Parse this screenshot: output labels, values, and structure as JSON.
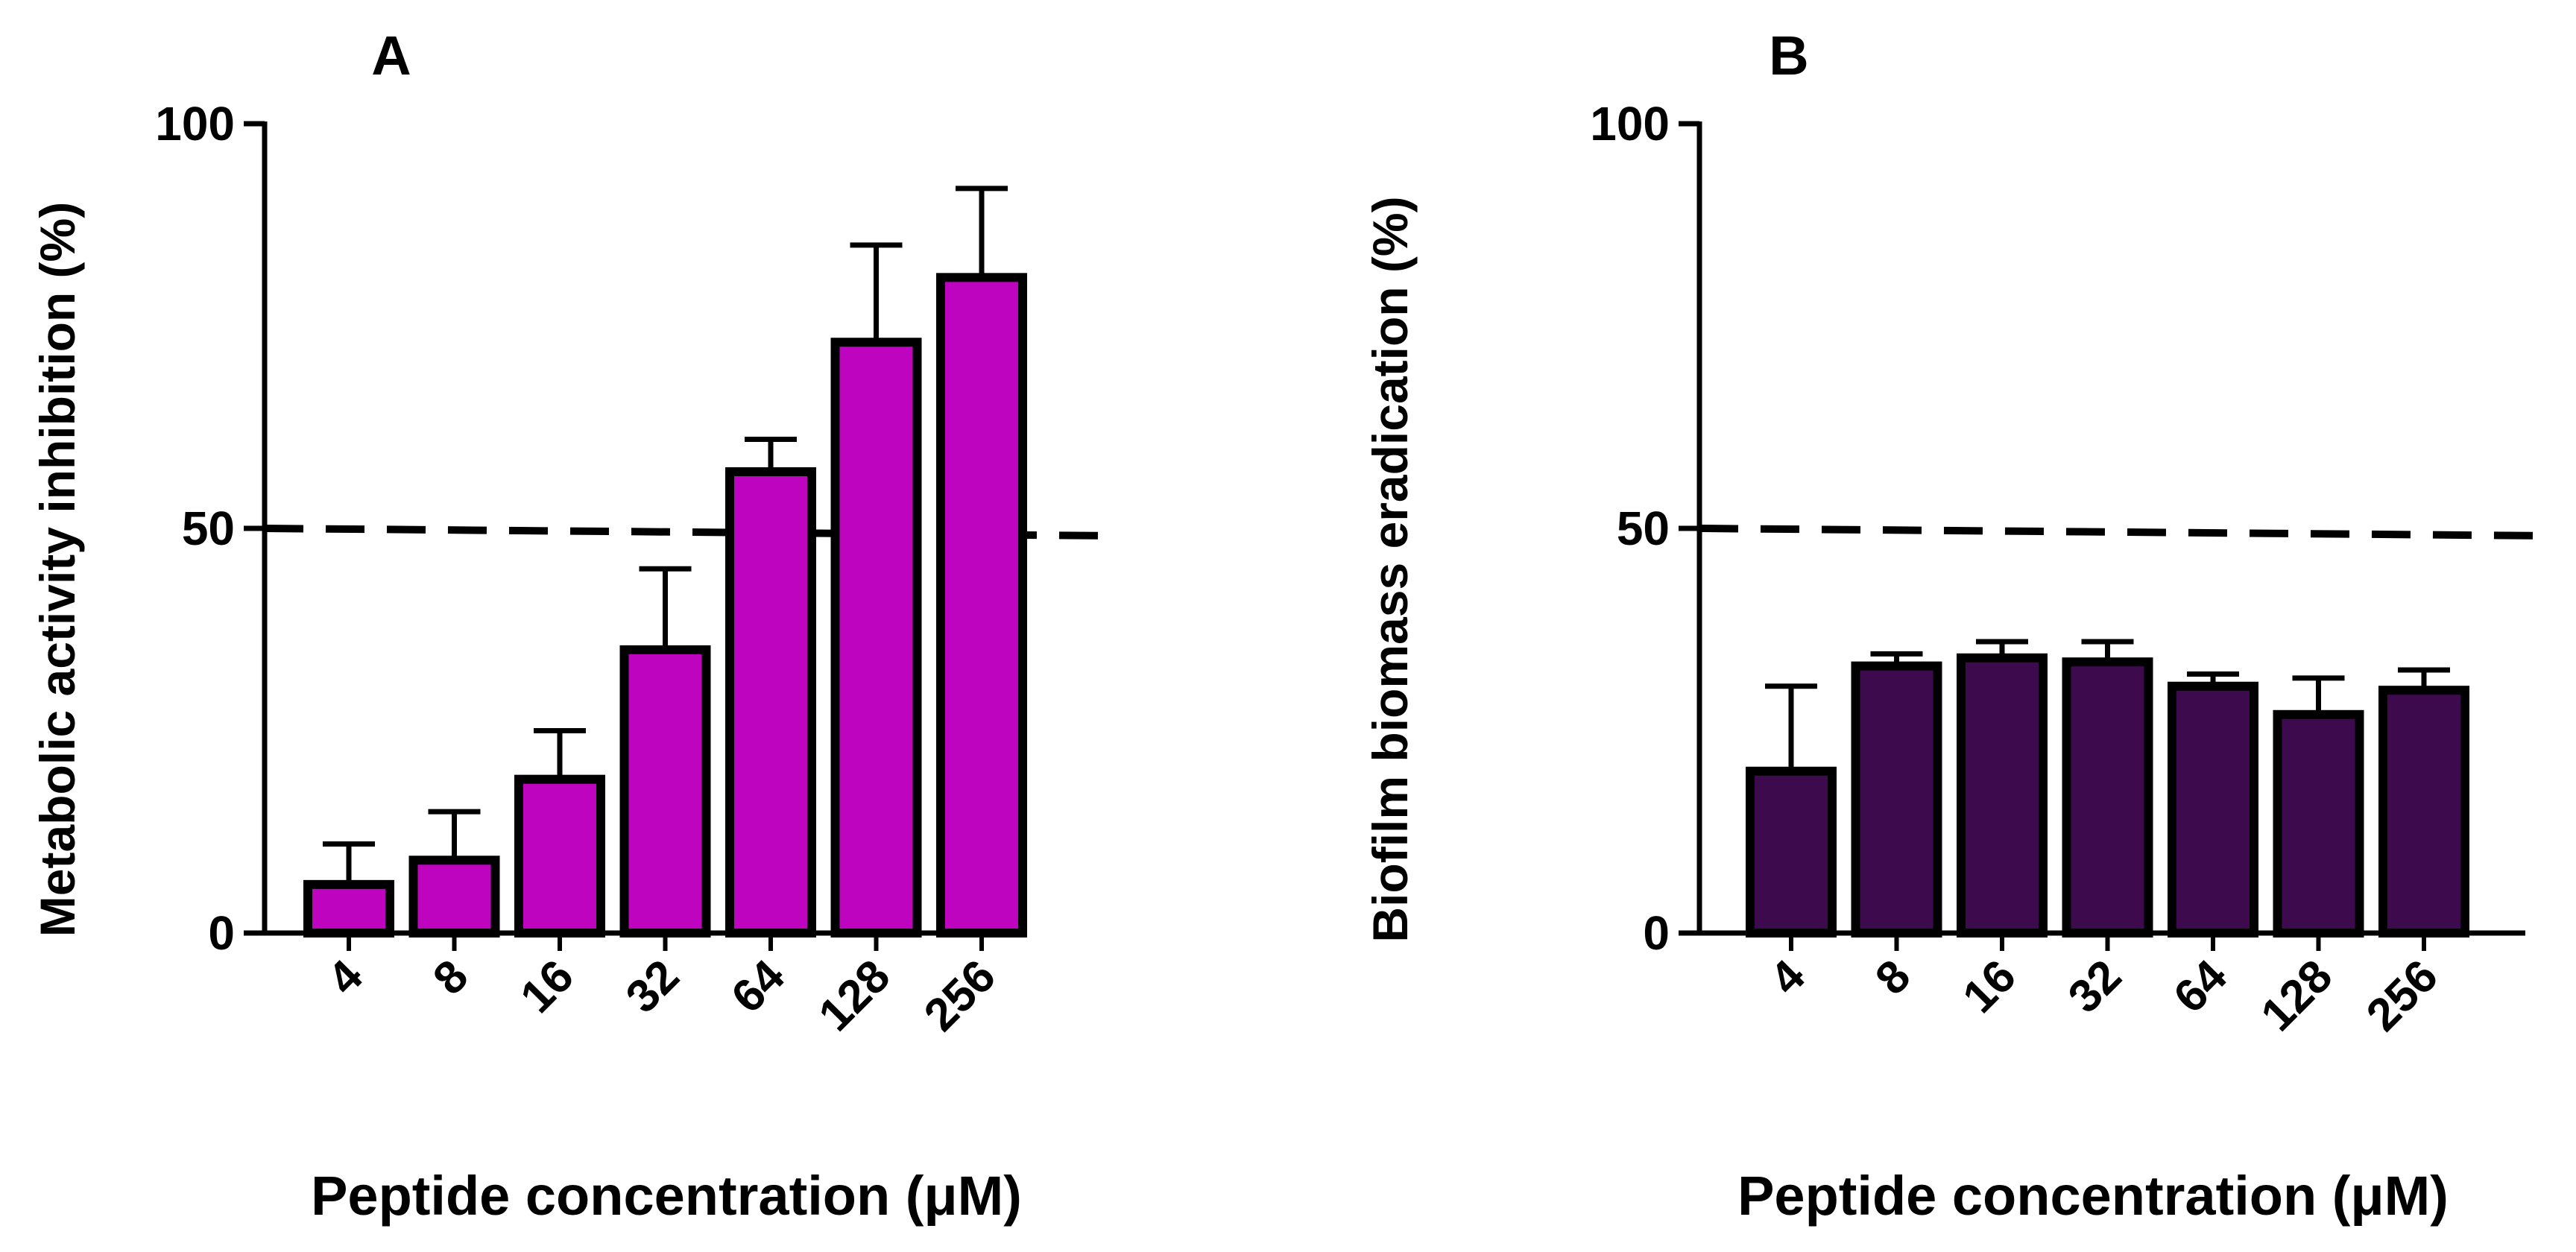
{
  "chart_data": [
    {
      "type": "bar",
      "panel_label": "A",
      "title": "",
      "xlabel": "Peptide concentration (μM)",
      "ylabel": "Metabolic activity inhibition (%)",
      "categories": [
        "4",
        "8",
        "16",
        "32",
        "64",
        "128",
        "256"
      ],
      "values": [
        6,
        9,
        19,
        35,
        57,
        73,
        81
      ],
      "error": [
        5,
        6,
        6,
        10,
        4,
        12,
        11
      ],
      "ylim": [
        0,
        100
      ],
      "yticks": [
        0,
        50,
        100
      ],
      "ytick_labels": [
        "0",
        "50",
        "100"
      ],
      "reference_line": 50,
      "bar_color": "#bf04bf",
      "grid": false,
      "legend": "none"
    },
    {
      "type": "bar",
      "panel_label": "B",
      "title": "",
      "xlabel": "Peptide concentration (μM)",
      "ylabel": "Biofilm biomass eradication (%)",
      "categories": [
        "4",
        "8",
        "16",
        "32",
        "64",
        "128",
        "256"
      ],
      "values": [
        20,
        33,
        34,
        33.5,
        30.5,
        27,
        30
      ],
      "error": [
        10.5,
        1.5,
        2,
        2.5,
        1.5,
        4.5,
        2.5
      ],
      "ylim": [
        0,
        100
      ],
      "yticks": [
        0,
        50,
        100
      ],
      "ytick_labels": [
        "0",
        "50",
        "100"
      ],
      "reference_line": 50,
      "bar_color": "#3e0a4e",
      "grid": false,
      "legend": "none"
    }
  ]
}
